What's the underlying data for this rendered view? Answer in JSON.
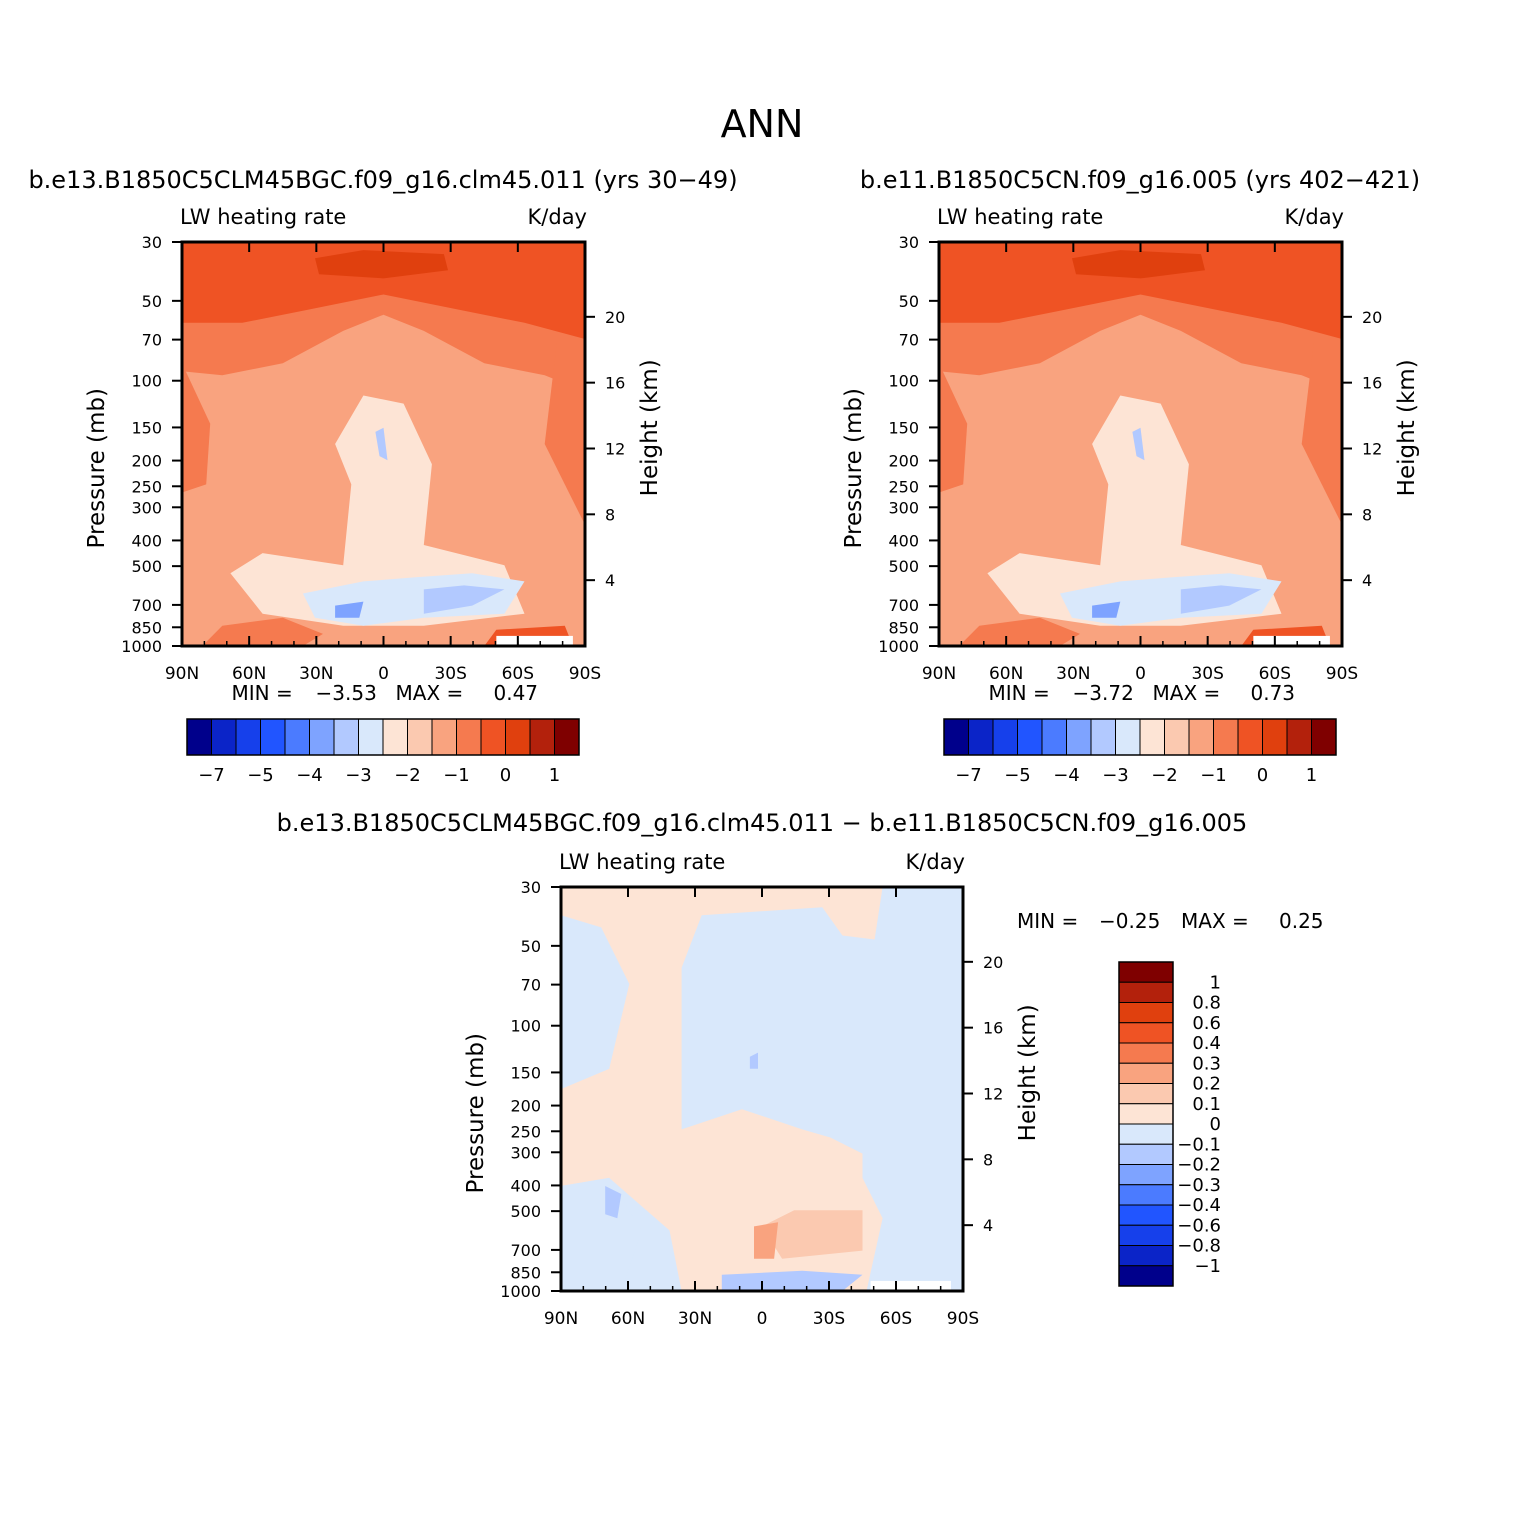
{
  "page_title": "ANN",
  "chart_data": [
    {
      "type": "heatmap",
      "subtitle": "b.e13.B1850C5CLM45BGC.f09_g16.clm45.011 (yrs 30-49)",
      "title": "LW heating rate",
      "units": "K/day",
      "xlabel": "",
      "ylabel": "Pressure (mb)",
      "ylabel_right": "Height (km)",
      "x_ticks": [
        "90N",
        "60N",
        "30N",
        "0",
        "30S",
        "60S",
        "90S"
      ],
      "y_ticks": [
        "30",
        "50",
        "70",
        "100",
        "150",
        "200",
        "250",
        "300",
        "400",
        "500",
        "700",
        "850",
        "1000"
      ],
      "y_right_ticks": [
        "20",
        "16",
        "12",
        "8",
        "4"
      ],
      "ylim": [
        1000,
        30
      ],
      "y_scale": "log",
      "stats": {
        "min_label": "MIN =",
        "min": "-3.53",
        "max_label": "MAX =",
        "max": "0.47"
      },
      "colorbar": {
        "orientation": "horizontal",
        "colors": [
          "#00008b",
          "#0b24c8",
          "#1640eb",
          "#2155ff",
          "#4b7bff",
          "#7ea3ff",
          "#b2c9ff",
          "#d9e8fb",
          "#fde4d5",
          "#fbc9b0",
          "#f9a37f",
          "#f57a4f",
          "#ef5324",
          "#e0400e",
          "#b3210c",
          "#7f0000"
        ],
        "labels": [
          "-7",
          "-5",
          "-4",
          "-3",
          "-2",
          "-1",
          "0",
          "1"
        ]
      }
    },
    {
      "type": "heatmap",
      "subtitle": "b.e11.B1850C5CN.f09_g16.005 (yrs 402-421)",
      "title": "LW heating rate",
      "units": "K/day",
      "xlabel": "",
      "ylabel": "Pressure (mb)",
      "ylabel_right": "Height (km)",
      "x_ticks": [
        "90N",
        "60N",
        "30N",
        "0",
        "30S",
        "60S",
        "90S"
      ],
      "y_ticks": [
        "30",
        "50",
        "70",
        "100",
        "150",
        "200",
        "250",
        "300",
        "400",
        "500",
        "700",
        "850",
        "1000"
      ],
      "y_right_ticks": [
        "20",
        "16",
        "12",
        "8",
        "4"
      ],
      "ylim": [
        1000,
        30
      ],
      "y_scale": "log",
      "stats": {
        "min_label": "MIN =",
        "min": "-3.72",
        "max_label": "MAX =",
        "max": "0.73"
      },
      "colorbar": {
        "orientation": "horizontal",
        "colors": [
          "#00008b",
          "#0b24c8",
          "#1640eb",
          "#2155ff",
          "#4b7bff",
          "#7ea3ff",
          "#b2c9ff",
          "#d9e8fb",
          "#fde4d5",
          "#fbc9b0",
          "#f9a37f",
          "#f57a4f",
          "#ef5324",
          "#e0400e",
          "#b3210c",
          "#7f0000"
        ],
        "labels": [
          "-7",
          "-5",
          "-4",
          "-3",
          "-2",
          "-1",
          "0",
          "1"
        ]
      }
    },
    {
      "type": "heatmap",
      "subtitle": "b.e13.B1850C5CLM45BGC.f09_g16.clm45.011 - b.e11.B1850C5CN.f09_g16.005",
      "title": "LW heating rate",
      "units": "K/day",
      "xlabel": "",
      "ylabel": "Pressure (mb)",
      "ylabel_right": "Height (km)",
      "x_ticks": [
        "90N",
        "60N",
        "30N",
        "0",
        "30S",
        "60S",
        "90S"
      ],
      "y_ticks": [
        "30",
        "50",
        "70",
        "100",
        "150",
        "200",
        "250",
        "300",
        "400",
        "500",
        "700",
        "850",
        "1000"
      ],
      "y_right_ticks": [
        "20",
        "16",
        "12",
        "8",
        "4"
      ],
      "ylim": [
        1000,
        30
      ],
      "y_scale": "log",
      "stats": {
        "min_label": "MIN =",
        "min": "-0.25",
        "max_label": "MAX =",
        "max": "0.25"
      },
      "colorbar": {
        "orientation": "vertical",
        "colors": [
          "#7f0000",
          "#b3210c",
          "#e0400e",
          "#ef5324",
          "#f57a4f",
          "#f9a37f",
          "#fbc9b0",
          "#fde4d5",
          "#d9e8fb",
          "#b2c9ff",
          "#7ea3ff",
          "#4b7bff",
          "#2155ff",
          "#1640eb",
          "#0b24c8",
          "#00008b"
        ],
        "labels": [
          "1",
          "0.8",
          "0.6",
          "0.4",
          "0.3",
          "0.2",
          "0.1",
          "0",
          "-0.1",
          "-0.2",
          "-0.3",
          "-0.4",
          "-0.6",
          "-0.8",
          "-1"
        ]
      }
    }
  ]
}
